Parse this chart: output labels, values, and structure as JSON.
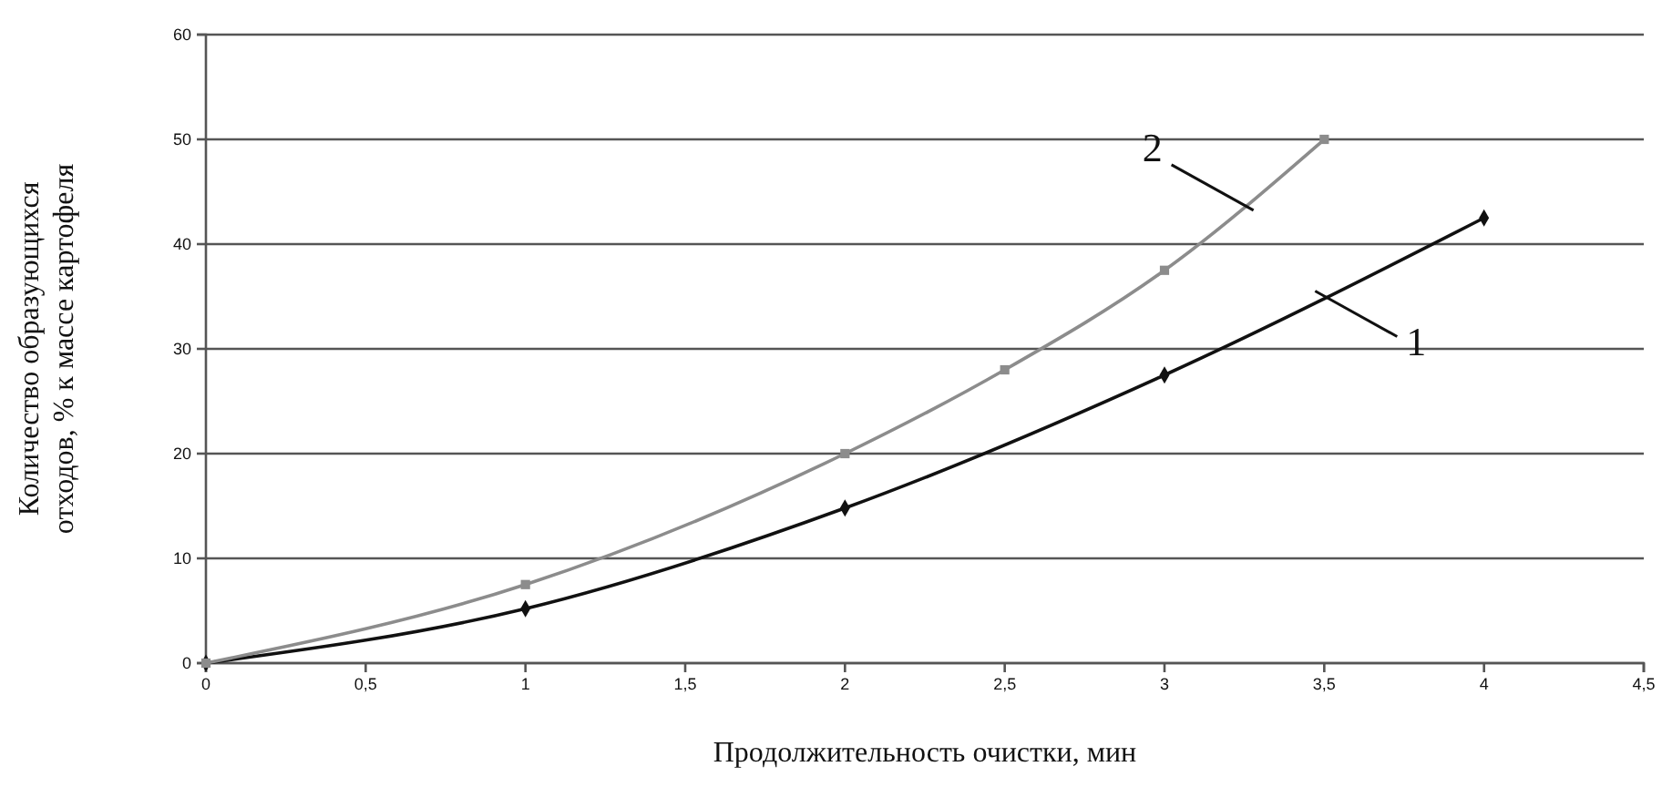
{
  "chart_data": {
    "type": "line",
    "xlabel": "Продолжительность очистки, мин",
    "ylabel": "Количество образующихся\nотходов, % к массе картофеля",
    "xlim": [
      0,
      4.5
    ],
    "xticks": [
      0,
      {
        "value": 0.5,
        "label": "0,5"
      },
      1,
      {
        "value": 1.5,
        "label": "1,5"
      },
      2,
      {
        "value": 2.5,
        "label": "2,5"
      },
      3,
      {
        "value": 3.5,
        "label": "3,5"
      },
      4,
      {
        "value": 4.5,
        "label": "4,5"
      }
    ],
    "ylim": [
      0,
      60
    ],
    "yticks": [
      0,
      10,
      20,
      30,
      40,
      50,
      60
    ],
    "grid": "y",
    "series": [
      {
        "name": "1",
        "color": "#111111",
        "marker": "diamond",
        "x": [
          0,
          1,
          2,
          3,
          4
        ],
        "values": [
          0,
          5.2,
          14.8,
          27.5,
          42.5
        ]
      },
      {
        "name": "2",
        "color": "#8c8c8c",
        "marker": "square",
        "x": [
          0,
          1,
          2,
          2.5,
          3,
          3.5
        ],
        "values": [
          0,
          7.5,
          20,
          28,
          37.5,
          50
        ]
      }
    ]
  }
}
